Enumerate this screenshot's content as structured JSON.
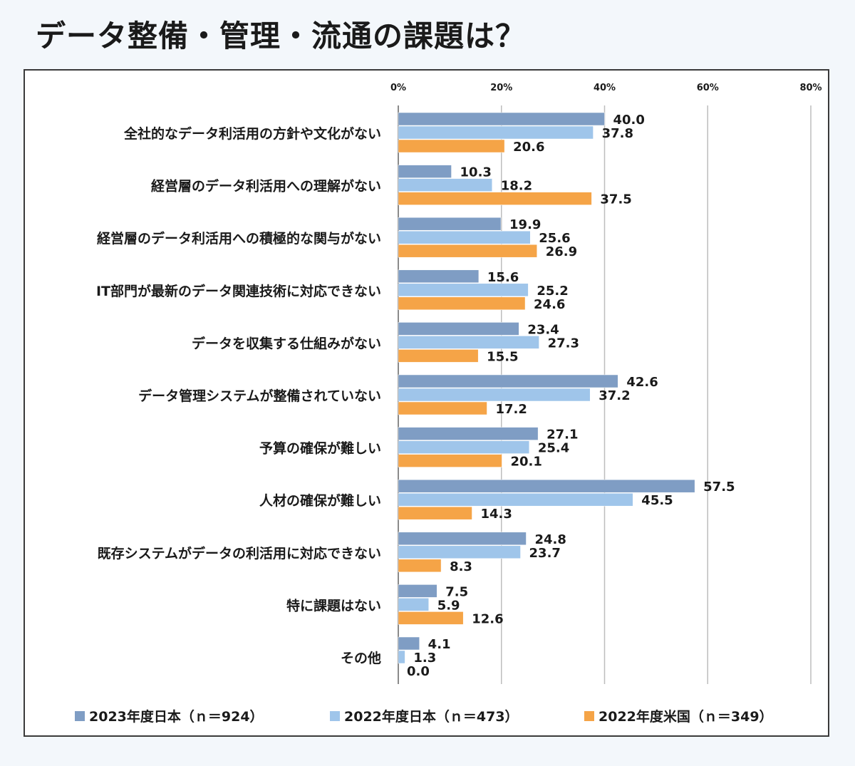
{
  "title": "データ整備・管理・流通の課題は？",
  "colors": {
    "series0": "#7f9dc4",
    "series1": "#9fc5ea",
    "series2": "#f5a447"
  },
  "chart_data": {
    "type": "bar",
    "orientation": "horizontal",
    "categories": [
      "全社的なデータ利活用の方針や文化がない",
      "経営層のデータ利活用への理解がない",
      "経営層のデータ利活用への積極的な関与がない",
      "IT部門が最新のデータ関連技術に対応できない",
      "データを収集する仕組みがない",
      "データ管理システムが整備されていない",
      "予算の確保が難しい",
      "人材の確保が難しい",
      "既存システムがデータの利活用に対応できない",
      "特に課題はない",
      "その他"
    ],
    "series": [
      {
        "name": "2023年度日本（ｎ＝924）",
        "values": [
          40.0,
          10.3,
          19.9,
          15.6,
          23.4,
          42.6,
          27.1,
          57.5,
          24.8,
          7.5,
          4.1
        ]
      },
      {
        "name": "2022年度日本（ｎ＝473）",
        "values": [
          37.8,
          18.2,
          25.6,
          25.2,
          27.3,
          37.2,
          25.4,
          45.5,
          23.7,
          5.9,
          1.3
        ]
      },
      {
        "name": "2022年度米国（ｎ＝349）",
        "values": [
          20.6,
          37.5,
          26.9,
          24.6,
          15.5,
          17.2,
          20.1,
          14.3,
          8.3,
          12.6,
          0.0
        ]
      }
    ],
    "value_labels": [
      [
        "40.0",
        "10.3",
        "19.9",
        "15.6",
        "23.4",
        "42.6",
        "27.1",
        "57.5",
        "24.8",
        "7.5",
        "4.1"
      ],
      [
        "37.8",
        "18.2",
        "25.6",
        "25.2",
        "27.3",
        "37.2",
        "25.4",
        "45.5",
        "23.7",
        "5.9",
        "1.3"
      ],
      [
        "20.6",
        "37.5",
        "26.9",
        "24.6",
        "15.5",
        "17.2",
        "20.1",
        "14.3",
        "8.3",
        "12.6",
        "0.0"
      ]
    ],
    "x_ticks": [
      0,
      20,
      40,
      60,
      80
    ],
    "x_tick_labels": [
      "0%",
      "20%",
      "40%",
      "60%",
      "80%"
    ],
    "xlim": [
      0,
      80
    ],
    "grid": true,
    "legend_position": "bottom"
  }
}
